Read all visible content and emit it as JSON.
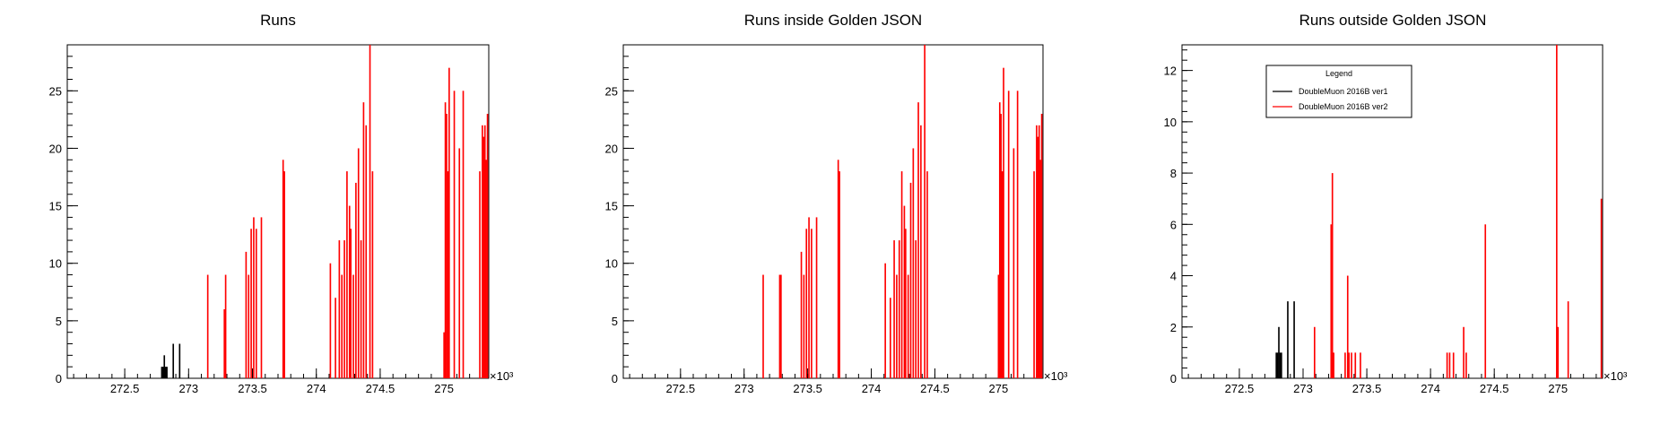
{
  "chart_data": [
    {
      "type": "bar",
      "title": "Runs",
      "xlabel": "",
      "ylabel": "",
      "x_exponent_label": "×10³",
      "xlim": [
        272.05,
        275.35
      ],
      "ylim": [
        0,
        29
      ],
      "x_ticks": [
        "272.5",
        "273",
        "273.5",
        "274",
        "274.5",
        "275"
      ],
      "x_tick_values": [
        272.5,
        273.0,
        273.5,
        274.0,
        274.5,
        275.0
      ],
      "y_ticks": [
        "0",
        "5",
        "10",
        "15",
        "20",
        "25"
      ],
      "y_tick_values": [
        0,
        5,
        10,
        15,
        20,
        25
      ],
      "series": [
        {
          "color": "#000000",
          "x": [
            272.79,
            272.8,
            272.81,
            272.82,
            272.83,
            272.88,
            272.93
          ],
          "values": [
            1,
            1,
            2,
            1,
            1,
            3,
            3
          ]
        },
        {
          "color": "#ff0000",
          "x": [
            273.15,
            273.28,
            273.29,
            273.45,
            273.47,
            273.49,
            273.51,
            273.53,
            273.57,
            273.74,
            273.75,
            274.11,
            274.15,
            274.18,
            274.2,
            274.22,
            274.24,
            274.26,
            274.27,
            274.29,
            274.31,
            274.33,
            274.35,
            274.37,
            274.39,
            274.42,
            274.44,
            275.0,
            275.01,
            275.02,
            275.03,
            275.04,
            275.08,
            275.12,
            275.15,
            275.28,
            275.3,
            275.31,
            275.32,
            275.33,
            275.34
          ],
          "values": [
            9,
            6,
            9,
            11,
            9,
            13,
            14,
            13,
            14,
            19,
            18,
            10,
            7,
            12,
            9,
            12,
            18,
            15,
            13,
            9,
            17,
            20,
            12,
            24,
            22,
            29,
            18,
            4,
            24,
            23,
            18,
            27,
            25,
            20,
            25,
            18,
            22,
            21,
            22,
            19,
            23
          ]
        }
      ]
    },
    {
      "type": "bar",
      "title": "Runs inside Golden JSON",
      "xlabel": "",
      "ylabel": "",
      "x_exponent_label": "×10³",
      "xlim": [
        272.05,
        275.35
      ],
      "ylim": [
        0,
        29
      ],
      "x_ticks": [
        "272.5",
        "273",
        "273.5",
        "274",
        "274.5",
        "275"
      ],
      "x_tick_values": [
        272.5,
        273.0,
        273.5,
        274.0,
        274.5,
        275.0
      ],
      "y_ticks": [
        "0",
        "5",
        "10",
        "15",
        "20",
        "25"
      ],
      "y_tick_values": [
        0,
        5,
        10,
        15,
        20,
        25
      ],
      "series": [
        {
          "color": "#ff0000",
          "x": [
            273.15,
            273.28,
            273.29,
            273.45,
            273.47,
            273.49,
            273.51,
            273.53,
            273.57,
            273.74,
            273.75,
            274.11,
            274.15,
            274.18,
            274.2,
            274.22,
            274.24,
            274.26,
            274.27,
            274.29,
            274.31,
            274.33,
            274.35,
            274.37,
            274.39,
            274.42,
            274.44,
            275.0,
            275.01,
            275.02,
            275.03,
            275.04,
            275.08,
            275.12,
            275.15,
            275.28,
            275.3,
            275.31,
            275.32,
            275.33,
            275.34
          ],
          "values": [
            9,
            9,
            9,
            11,
            9,
            13,
            14,
            13,
            14,
            19,
            18,
            10,
            7,
            12,
            9,
            12,
            18,
            15,
            13,
            9,
            17,
            20,
            12,
            24,
            22,
            29,
            18,
            9,
            24,
            23,
            18,
            27,
            25,
            20,
            25,
            18,
            22,
            21,
            22,
            19,
            23
          ]
        }
      ]
    },
    {
      "type": "bar",
      "title": "Runs outside Golden JSON",
      "xlabel": "",
      "ylabel": "",
      "x_exponent_label": "×10³",
      "xlim": [
        272.05,
        275.35
      ],
      "ylim": [
        0,
        13
      ],
      "x_ticks": [
        "272.5",
        "273",
        "273.5",
        "274",
        "274.5",
        "275"
      ],
      "x_tick_values": [
        272.5,
        273.0,
        273.5,
        274.0,
        274.5,
        275.0
      ],
      "y_ticks": [
        "0",
        "2",
        "4",
        "6",
        "8",
        "10",
        "12"
      ],
      "y_tick_values": [
        0,
        2,
        4,
        6,
        8,
        10,
        12
      ],
      "legend": {
        "title": "Legend",
        "position": "top-left",
        "entries": [
          {
            "label": "DoubleMuon 2016B ver1",
            "color": "#000000"
          },
          {
            "label": "DoubleMuon 2016B ver2",
            "color": "#ff0000"
          }
        ]
      },
      "series": [
        {
          "color": "#000000",
          "x": [
            272.79,
            272.8,
            272.81,
            272.82,
            272.83,
            272.88,
            272.93
          ],
          "values": [
            1,
            1,
            2,
            1,
            1,
            3,
            3
          ]
        },
        {
          "color": "#ff0000",
          "x": [
            273.09,
            273.22,
            273.23,
            273.24,
            273.33,
            273.35,
            273.36,
            273.38,
            273.41,
            273.45,
            274.13,
            274.15,
            274.18,
            274.26,
            274.28,
            274.43,
            274.99,
            275.0,
            275.08,
            275.34
          ],
          "values": [
            2,
            6,
            8,
            1,
            1,
            4,
            1,
            1,
            1,
            1,
            1,
            1,
            1,
            2,
            1,
            6,
            13,
            2,
            3,
            7
          ]
        }
      ]
    }
  ]
}
